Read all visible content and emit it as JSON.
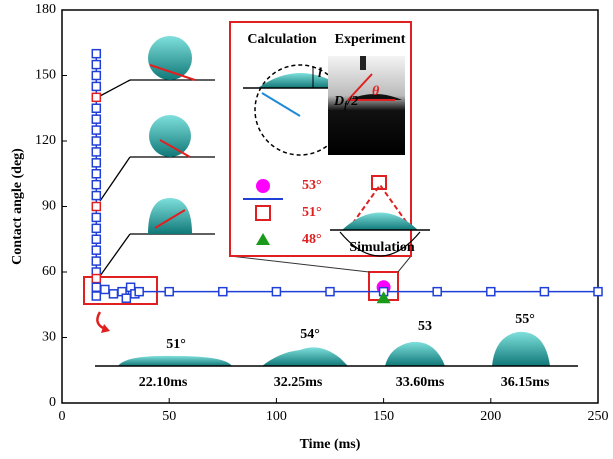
{
  "chart_data": {
    "type": "line",
    "xlabel": "Time (ms)",
    "ylabel": "Contact angle (deg)",
    "xlim": [
      0,
      250
    ],
    "xticks": [
      0,
      50,
      100,
      150,
      200,
      250
    ],
    "ylim": [
      0,
      180
    ],
    "yticks": [
      0,
      30,
      60,
      90,
      120,
      150,
      180
    ],
    "series": [
      {
        "name": "53°",
        "color": "#ff00ff",
        "marker": "circle",
        "x": [
          150
        ],
        "values": [
          53
        ]
      },
      {
        "name": "51°",
        "color": "#1f3fd6",
        "marker": "square",
        "x": [
          16,
          16,
          16,
          16,
          16,
          16,
          16,
          16,
          16,
          16,
          16,
          16,
          16,
          16,
          16,
          16,
          16,
          16,
          16,
          16,
          16,
          16,
          16,
          16,
          20,
          24,
          28,
          30,
          32,
          34,
          36,
          50,
          75,
          100,
          125,
          150,
          175,
          200,
          225,
          250
        ],
        "values": [
          160,
          155,
          150,
          145,
          140,
          135,
          130,
          125,
          120,
          115,
          110,
          105,
          100,
          95,
          90,
          85,
          80,
          75,
          70,
          65,
          60,
          57,
          53,
          49,
          52,
          50,
          51,
          48,
          53,
          50,
          51,
          51,
          51,
          51,
          51,
          51,
          51,
          51,
          51,
          51
        ],
        "point_colors": [
          "#1f3fd6",
          "#1f3fd6",
          "#1f3fd6",
          "#1f3fd6",
          "#e02020",
          "#1f3fd6",
          "#1f3fd6",
          "#1f3fd6",
          "#1f3fd6",
          "#1f3fd6",
          "#1f3fd6",
          "#1f3fd6",
          "#1f3fd6",
          "#1f3fd6",
          "#e02020",
          "#1f3fd6",
          "#1f3fd6",
          "#1f3fd6",
          "#1f3fd6",
          "#1f3fd6",
          "#1f3fd6",
          "#e02020",
          "#1f3fd6",
          "#1f3fd6",
          "#1f3fd6",
          "#1f3fd6",
          "#1f3fd6",
          "#1f3fd6",
          "#1f3fd6",
          "#1f3fd6",
          "#1f3fd6",
          "#1f3fd6",
          "#1f3fd6",
          "#1f3fd6",
          "#1f3fd6",
          "#1f3fd6",
          "#1f3fd6",
          "#1f3fd6",
          "#1f3fd6",
          "#1f3fd6"
        ]
      },
      {
        "name": "48°",
        "color": "#1a9a1a",
        "marker": "triangle",
        "x": [
          150
        ],
        "values": [
          48
        ]
      }
    ],
    "annotations": {
      "calculation": "Calculation",
      "experiment": "Experiment",
      "simulation": "Simulation",
      "l": "l",
      "d": "D",
      "d_sub": "f",
      "d_rest": "/2",
      "theta": "θ"
    },
    "frames": [
      {
        "angle": "51°",
        "time": "22.10ms"
      },
      {
        "angle": "54°",
        "time": "32.25ms"
      },
      {
        "angle": "53",
        "time": "33.60ms"
      },
      {
        "angle": "55°",
        "time": "36.15ms"
      }
    ]
  }
}
